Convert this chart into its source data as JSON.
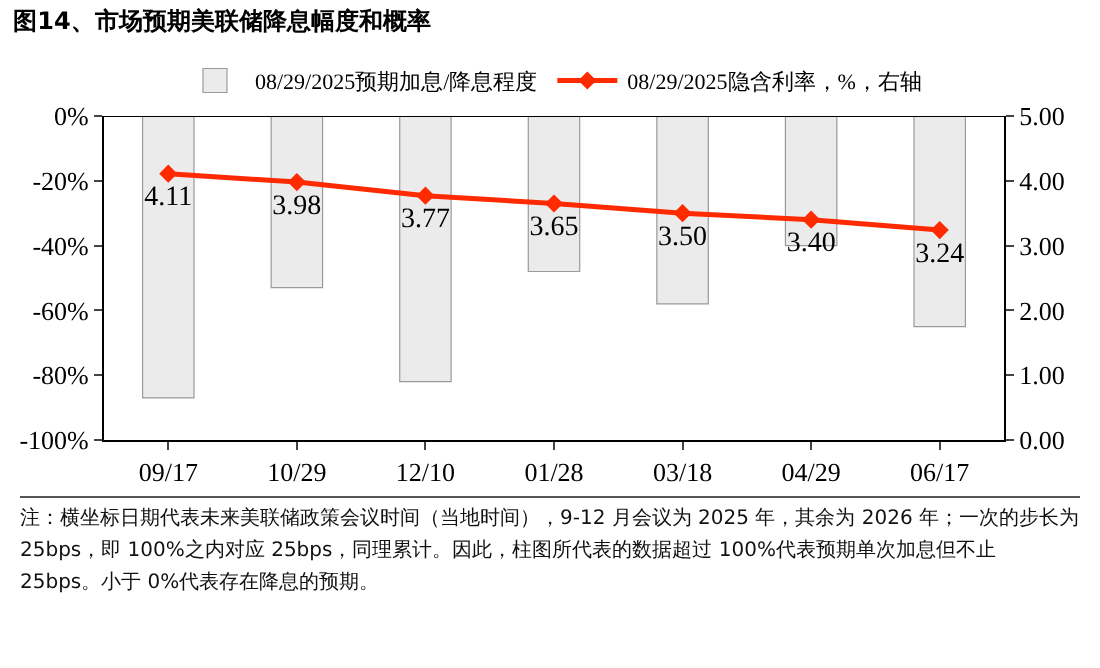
{
  "chart_data": {
    "type": "bar",
    "title": "图14、市场预期美联储降息幅度和概率",
    "categories": [
      "09/17",
      "10/29",
      "12/10",
      "01/28",
      "03/18",
      "04/29",
      "06/17"
    ],
    "series": [
      {
        "name": "08/29/2025预期加息/降息程度",
        "color": "#ebebeb",
        "values": [
          -87,
          -53,
          -82,
          -48,
          -58,
          -40,
          -65
        ]
      },
      {
        "name": "08/29/2025隐含利率，%，右轴",
        "type": "line",
        "axis": "y2",
        "color": "#ff2a00",
        "marker": "diamond",
        "values": [
          4.11,
          3.98,
          3.77,
          3.65,
          3.5,
          3.4,
          3.24
        ],
        "value_labels": [
          "4.11",
          "3.98",
          "3.77",
          "3.65",
          "3.50",
          "3.40",
          "3.24"
        ]
      }
    ],
    "ylim": [
      -100,
      0
    ],
    "yticks": [
      {
        "value": 0,
        "label": "0%"
      },
      {
        "value": -20,
        "label": "-20%"
      },
      {
        "value": -40,
        "label": "-40%"
      },
      {
        "value": -60,
        "label": "-60%"
      },
      {
        "value": -80,
        "label": "-80%"
      },
      {
        "value": -100,
        "label": "-100%"
      }
    ],
    "y2lim": [
      0,
      5
    ],
    "y2ticks": [
      {
        "value": 0,
        "label": "0.00"
      },
      {
        "value": 1,
        "label": "1.00"
      },
      {
        "value": 2,
        "label": "2.00"
      },
      {
        "value": 3,
        "label": "3.00"
      },
      {
        "value": 4,
        "label": "4.00"
      },
      {
        "value": 5,
        "label": "5.00"
      }
    ],
    "grid": false,
    "legend": "top",
    "annotations": [
      "注：横坐标日期代表未来美联储政策会议时间（当地时间），9-12 月会议为 2025 年，其余为 2026 年；一次的步长为 25bps，即 100%之内对应 25bps，同理累计。因此，柱图所代表的数据超过 100%代表预期单次加息但不止 25bps。小于 0%代表存在降息的预期。"
    ]
  }
}
